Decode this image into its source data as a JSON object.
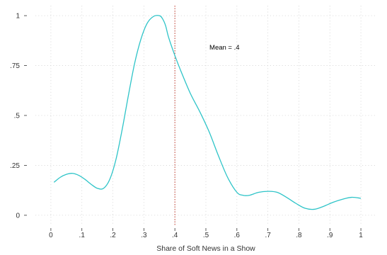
{
  "chart_data": {
    "type": "line",
    "title": "",
    "xlabel": "Share of Soft News in a Show",
    "ylabel": "",
    "xlim": [
      -0.05,
      1.05
    ],
    "ylim": [
      -0.05,
      1.05
    ],
    "xticks": [
      0,
      0.1,
      0.2,
      0.3,
      0.4,
      0.5,
      0.6,
      0.7,
      0.8,
      0.9,
      1
    ],
    "xtick_labels": [
      "0",
      ".1",
      ".2",
      ".3",
      ".4",
      ".5",
      ".6",
      ".7",
      ".8",
      ".9",
      "1"
    ],
    "yticks": [
      0,
      0.25,
      0.5,
      0.75,
      1
    ],
    "ytick_labels": [
      "0",
      ".25",
      ".5",
      ".75",
      "1"
    ],
    "grid": true,
    "series": [
      {
        "color": "#2ec4c8",
        "x": [
          0.01,
          0.03,
          0.05,
          0.07,
          0.09,
          0.11,
          0.13,
          0.15,
          0.17,
          0.19,
          0.21,
          0.23,
          0.25,
          0.27,
          0.29,
          0.31,
          0.33,
          0.35,
          0.36,
          0.37,
          0.38,
          0.4,
          0.42,
          0.45,
          0.48,
          0.51,
          0.54,
          0.57,
          0.6,
          0.62,
          0.64,
          0.67,
          0.7,
          0.73,
          0.76,
          0.79,
          0.82,
          0.85,
          0.88,
          0.91,
          0.94,
          0.97,
          1.0
        ],
        "y": [
          0.165,
          0.19,
          0.205,
          0.21,
          0.2,
          0.18,
          0.155,
          0.135,
          0.135,
          0.18,
          0.28,
          0.43,
          0.6,
          0.76,
          0.88,
          0.96,
          0.995,
          1.0,
          0.985,
          0.95,
          0.89,
          0.8,
          0.72,
          0.61,
          0.52,
          0.42,
          0.3,
          0.19,
          0.115,
          0.1,
          0.1,
          0.115,
          0.12,
          0.115,
          0.09,
          0.06,
          0.035,
          0.03,
          0.045,
          0.065,
          0.08,
          0.09,
          0.085
        ]
      }
    ],
    "reference_line": {
      "x": 0.4,
      "color": "#c0392b",
      "style": "dotted"
    },
    "annotation": {
      "text": "Mean = .4",
      "x": 0.56,
      "y": 0.84
    }
  }
}
